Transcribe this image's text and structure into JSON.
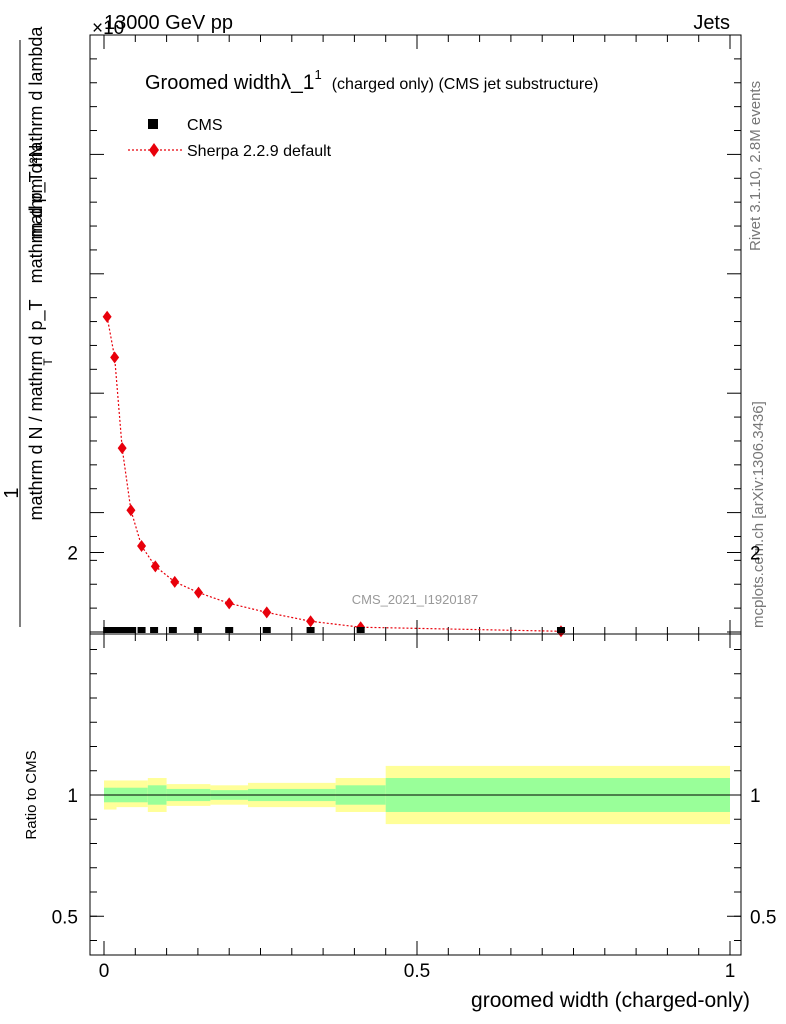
{
  "header": {
    "left_label": "13000 GeV pp",
    "exponent_label": "×10",
    "right_label": "Jets"
  },
  "side": {
    "rivet_label": "Rivet 3.1.10,  2.8M events",
    "mcplots_label": "mcplots.cern.ch [arXiv:1306.3436]"
  },
  "colors": {
    "sherpa": "#e8000b",
    "cms": "#000000",
    "band_inner": "#99ff99",
    "band_outer": "#ffff99"
  },
  "chart_data": [
    {
      "type": "line",
      "title_main": "Groomed width",
      "title_lambda": "λ_1",
      "title_sup": "1",
      "title_suffix": "(charged only) (CMS jet substructure)",
      "watermark": "CMS_2021_I1920187",
      "ylabel_numerator": "1",
      "ylabel_denominator": "mathrm d N / mathrm d p_T",
      "ylabel_numer_top": "mathrm d²N",
      "ylabel_numer_bottom": "mathrm d p_T mathrm d lambda",
      "ylabel_sub": "T",
      "xlim": [
        0,
        1
      ],
      "ylim": [
        0,
        25
      ],
      "legend_position": "top-left",
      "legend": [
        "CMS",
        "Sherpa 2.2.9 default"
      ],
      "series": [
        {
          "name": "CMS",
          "marker": "square",
          "x": [
            0.005,
            0.015,
            0.025,
            0.035,
            0.045,
            0.06,
            0.08,
            0.11,
            0.15,
            0.2,
            0.26,
            0.33,
            0.41,
            0.73
          ],
          "y": [
            0,
            0,
            0,
            0,
            0,
            0,
            0,
            0,
            0,
            0,
            0,
            0,
            0,
            0
          ]
        },
        {
          "name": "Sherpa 2.2.9 default",
          "marker": "diamond",
          "x": [
            0.005,
            0.017,
            0.029,
            0.043,
            0.06,
            0.082,
            0.113,
            0.151,
            0.2,
            0.26,
            0.33,
            0.41,
            0.73
          ],
          "y": [
            13.2,
            11.5,
            7.7,
            5.1,
            3.6,
            2.75,
            2.1,
            1.65,
            1.2,
            0.82,
            0.45,
            0.2,
            0.03
          ]
        }
      ]
    },
    {
      "type": "area",
      "ylabel": "Ratio to CMS",
      "xlabel": "groomed width (charged-only)",
      "xlim": [
        0,
        1
      ],
      "ylim": [
        0.3,
        2.3
      ],
      "x_ticks": [
        "0",
        "0.5",
        "1"
      ],
      "y_ticks": [
        "0.5",
        "1",
        "2"
      ],
      "reference_line": 1,
      "bins": [
        {
          "x0": 0.0,
          "x1": 0.02,
          "inner": [
            0.97,
            1.03
          ],
          "outer": [
            0.94,
            1.06
          ]
        },
        {
          "x0": 0.02,
          "x1": 0.07,
          "inner": [
            0.97,
            1.03
          ],
          "outer": [
            0.95,
            1.06
          ]
        },
        {
          "x0": 0.07,
          "x1": 0.1,
          "inner": [
            0.96,
            1.04
          ],
          "outer": [
            0.93,
            1.07
          ]
        },
        {
          "x0": 0.1,
          "x1": 0.17,
          "inner": [
            0.975,
            1.025
          ],
          "outer": [
            0.955,
            1.045
          ]
        },
        {
          "x0": 0.17,
          "x1": 0.23,
          "inner": [
            0.98,
            1.02
          ],
          "outer": [
            0.96,
            1.04
          ]
        },
        {
          "x0": 0.23,
          "x1": 0.37,
          "inner": [
            0.975,
            1.025
          ],
          "outer": [
            0.95,
            1.05
          ]
        },
        {
          "x0": 0.37,
          "x1": 0.45,
          "inner": [
            0.96,
            1.04
          ],
          "outer": [
            0.93,
            1.07
          ]
        },
        {
          "x0": 0.45,
          "x1": 1.0,
          "inner": [
            0.93,
            1.07
          ],
          "outer": [
            0.88,
            1.12
          ]
        }
      ]
    }
  ]
}
